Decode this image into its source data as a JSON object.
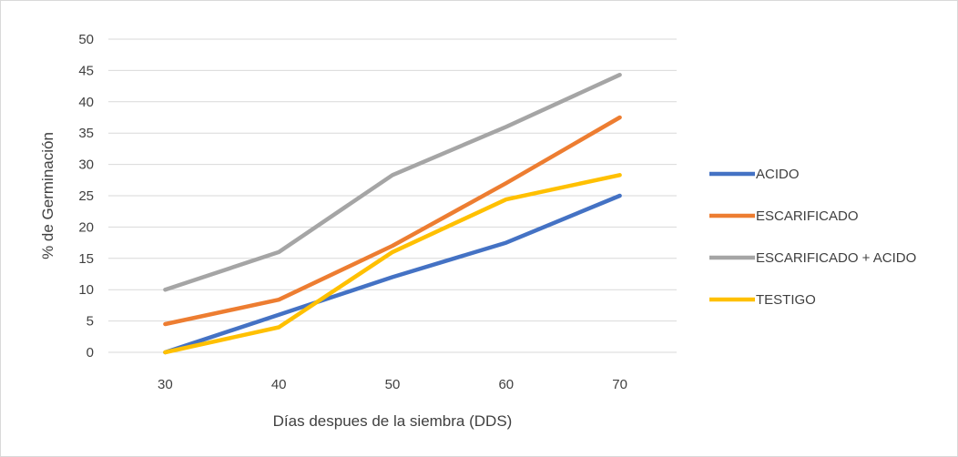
{
  "chart_data": {
    "type": "line",
    "title": "",
    "xlabel": "Días despues de la siembra (DDS)",
    "ylabel": "% de Germinación",
    "x": [
      30,
      40,
      50,
      60,
      70
    ],
    "x_tick_labels": [
      "30",
      "40",
      "50",
      "60",
      "70"
    ],
    "ylim": [
      0,
      50
    ],
    "y_ticks": [
      0,
      5,
      10,
      15,
      20,
      25,
      30,
      35,
      40,
      45,
      50
    ],
    "y_tick_labels": [
      "0",
      "5",
      "10",
      "15",
      "20",
      "25",
      "30",
      "35",
      "40",
      "45",
      "50"
    ],
    "grid": "horizontal",
    "legend_position": "right",
    "series": [
      {
        "name": "ACIDO",
        "color": "#4472C4",
        "values": [
          0,
          6,
          12,
          17.5,
          25
        ]
      },
      {
        "name": "ESCARIFICADO",
        "color": "#ED7D31",
        "values": [
          4.5,
          8.4,
          17,
          27,
          37.5
        ]
      },
      {
        "name": "ESCARIFICADO + ACIDO",
        "color": "#A5A5A5",
        "values": [
          10,
          16,
          28.3,
          36,
          44.3
        ]
      },
      {
        "name": "TESTIGO",
        "color": "#FFC000",
        "values": [
          0,
          4,
          16,
          24.4,
          28.3
        ]
      }
    ]
  }
}
